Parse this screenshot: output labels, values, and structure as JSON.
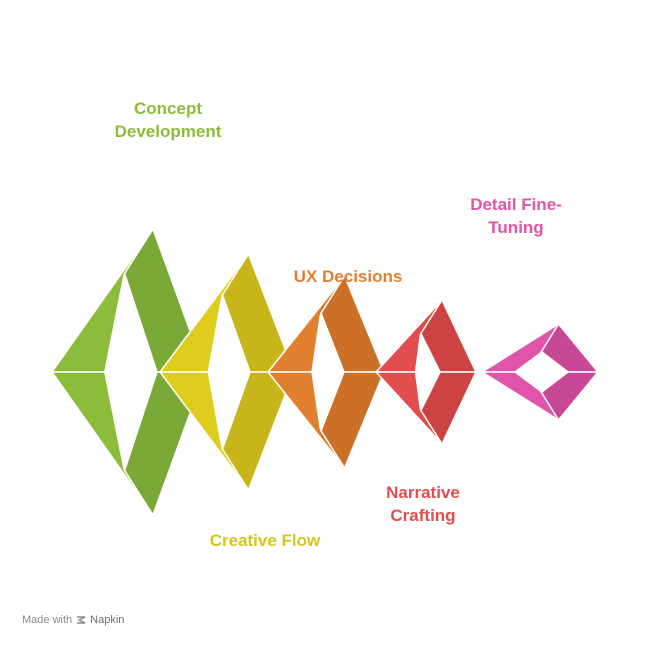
{
  "stages": [
    {
      "id": "concept",
      "lines": [
        "Concept",
        "Development"
      ],
      "color": "#8cbd3a",
      "dark": "#7aa836"
    },
    {
      "id": "creative",
      "lines": [
        "Creative Flow"
      ],
      "color": "#dfcc1c",
      "dark": "#c8b51a"
    },
    {
      "id": "ux",
      "lines": [
        "UX Decisions"
      ],
      "color": "#e0802f",
      "dark": "#cc6f27"
    },
    {
      "id": "narrative",
      "lines": [
        "Narrative",
        "Crafting"
      ],
      "color": "#e24e4e",
      "dark": "#cd4343"
    },
    {
      "id": "detail",
      "lines": [
        "Detail Fine-",
        "Tuning"
      ],
      "color": "#de55a9",
      "dark": "#c94896"
    }
  ],
  "footer": {
    "made_with": "Made with",
    "brand": "Napkin"
  }
}
